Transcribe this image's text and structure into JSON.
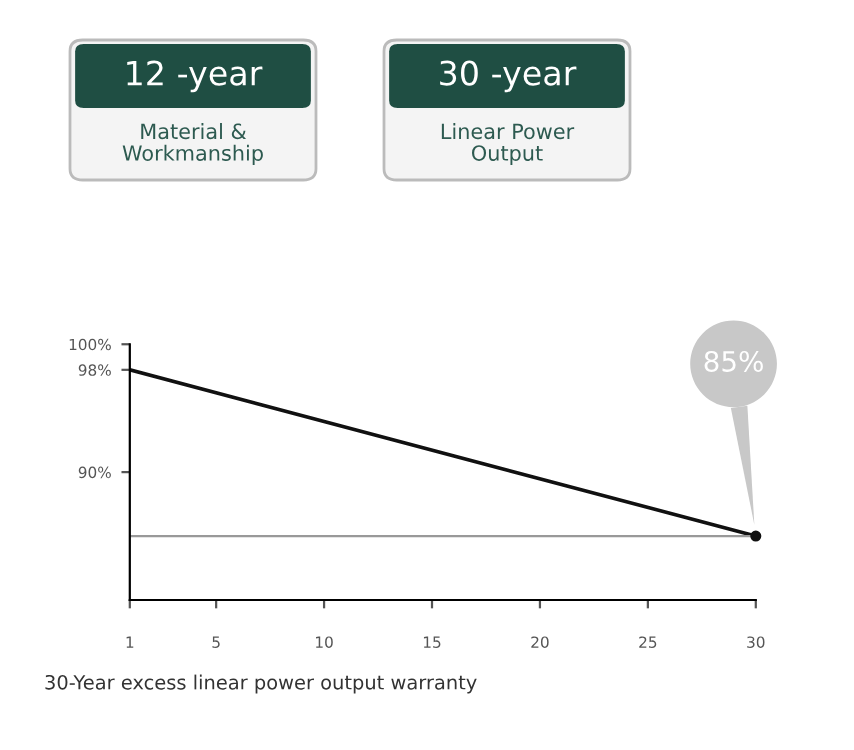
{
  "chart_data": {
    "type": "line",
    "annotations": [
      {
        "text": "85%",
        "x": 30,
        "y": 85
      },
      "12 -year",
      "Material & Workmanship",
      "30 -year",
      "Linear Power Output",
      "30-Year excess linear power output warranty"
    ],
    "x": [
      1,
      30
    ],
    "series": [
      {
        "color": "#111111",
        "values": [
          98,
          85
        ]
      }
    ],
    "xlim": [
      1,
      30
    ],
    "xticks": [
      1,
      5,
      10,
      15,
      20,
      25,
      30
    ],
    "ylim": [
      80,
      100
    ],
    "yticks": [
      {
        "value": 90,
        "label": "90%"
      },
      {
        "value": 98,
        "label": "98%"
      },
      {
        "value": 100,
        "label": "100%"
      }
    ],
    "ref_lines": [
      {
        "axis": "y",
        "value": 85,
        "color": "#999999"
      }
    ],
    "grid": false
  }
}
